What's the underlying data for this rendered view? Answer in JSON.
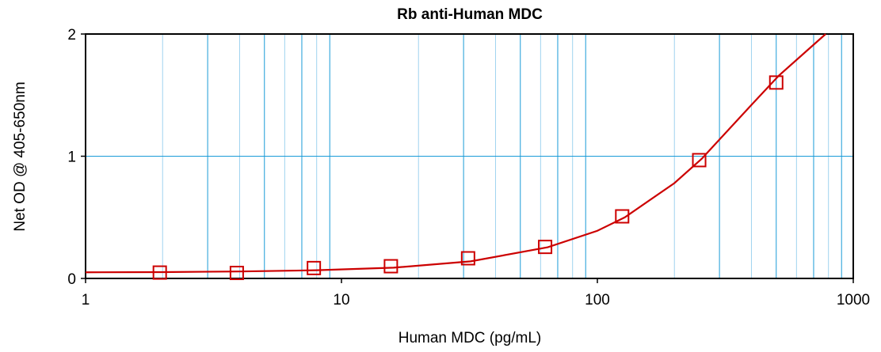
{
  "chart_data": {
    "type": "scatter",
    "title": "Rb anti-Human MDC",
    "xlabel": "Human MDC (pg/mL)",
    "ylabel": "Net OD @ 405-650nm",
    "x_scale": "log",
    "xlim": [
      1,
      1000
    ],
    "ylim": [
      0,
      2
    ],
    "x_ticks": [
      "1",
      "10",
      "100",
      "1000"
    ],
    "y_ticks": [
      "0",
      "1",
      "2"
    ],
    "grid": true,
    "colors": {
      "series": "#cc0000",
      "grid_major": "#1a9bd7",
      "grid_minor": "#9fd3ef",
      "frame": "#000000"
    },
    "series": [
      {
        "marker": "square",
        "x": [
          1.95,
          3.9,
          7.8,
          15.6,
          31.25,
          62.5,
          125,
          250,
          500
        ],
        "y": [
          0.048,
          0.045,
          0.085,
          0.1,
          0.165,
          0.258,
          0.508,
          0.968,
          1.603
        ]
      }
    ],
    "fit_curve": {
      "x": [
        1,
        2,
        4,
        8,
        16,
        32,
        64,
        100,
        128,
        200,
        256,
        400,
        512,
        780
      ],
      "y": [
        0.05,
        0.052,
        0.057,
        0.067,
        0.088,
        0.14,
        0.255,
        0.39,
        0.5,
        0.78,
        0.98,
        1.42,
        1.66,
        2.0
      ]
    }
  }
}
